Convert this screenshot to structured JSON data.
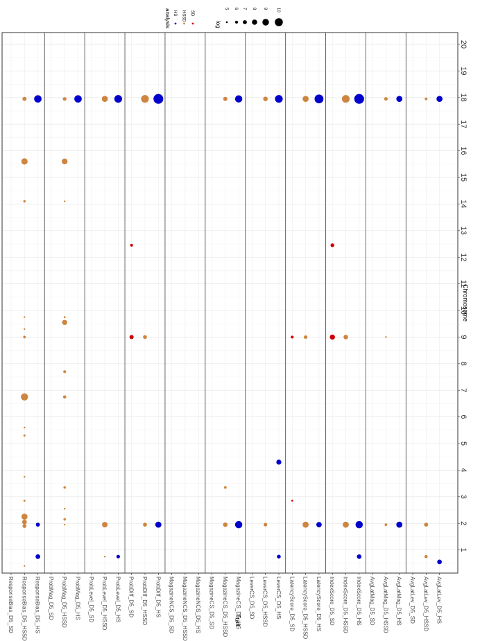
{
  "chart_data": {
    "type": "scatter",
    "orientation": "rotated-90",
    "xlabel": "Chromosome",
    "ylabel": "Trait",
    "chromosomes": [
      "1",
      "2",
      "3",
      "4",
      "5",
      "6",
      "7",
      "8",
      "9",
      "10",
      "11",
      "12",
      "13",
      "14",
      "15",
      "16",
      "17",
      "18",
      "19",
      "20"
    ],
    "chrom_range": [
      0.0,
      20.7
    ],
    "legend_position": "top",
    "analysis_legend": {
      "title": "analysis",
      "entries": [
        {
          "name": "HS",
          "color": "#0000CD"
        },
        {
          "name": "HSSD",
          "color": "#CD853F"
        },
        {
          "name": "SD",
          "color": "#CD0000"
        }
      ]
    },
    "size_legend": {
      "title": "log",
      "values": [
        5,
        6,
        7,
        8,
        9,
        10
      ]
    },
    "traits": [
      "ResponseBias_D5_SD",
      "ResponseBias_D5_HSSD",
      "ResponseBias_D5_HS",
      "ProbMag_D5_SD",
      "ProbMag_D5_HSSD",
      "ProbMag_D5_HS",
      "ProbLevel_D5_SD",
      "ProbLevel_D5_HSSD",
      "ProbLevel_D5_HS",
      "ProbDiff_D5_SD",
      "ProbDiff_D5_HSSD",
      "ProbDiff_D5_HS",
      "MagazineNCS_D5_SD",
      "MagazineNCS_D5_HSSD",
      "MagazineNCS_D5_HS",
      "MagazineCS_D5_SD",
      "MagazineCS_D5_HSSD",
      "MagazineCS_D5_HS",
      "LeverCS_D5_SD",
      "LeverCS_D5_HSSD",
      "LeverCS_D5_HS",
      "LatencyScore_D5_SD",
      "LatencyScore_D5_HSSD",
      "LatencyScore_D5_HS",
      "IndexScore_D5_SD",
      "IndexScore_D5_HSSD",
      "IndexScore_D5_HS",
      "AvgLatMag_D5_SD",
      "AvgLatMag_D5_HSSD",
      "AvgLatMag_D5_HS",
      "AvgLatLev_D5_SD",
      "AvgLatLev_D5_HSSD",
      "AvgLatLev_D5_HS"
    ],
    "points": [
      {
        "trait": "ResponseBias_D5_HSSD",
        "chrom": 0.4,
        "log": 4.6,
        "analysis": "HSSD"
      },
      {
        "trait": "ResponseBias_D5_HSSD",
        "chrom": 1.9,
        "log": 6.9,
        "analysis": "HSSD"
      },
      {
        "trait": "ResponseBias_D5_HSSD",
        "chrom": 2.05,
        "log": 7.5,
        "analysis": "HSSD"
      },
      {
        "trait": "ResponseBias_D5_HSSD",
        "chrom": 2.2,
        "log": 5.0,
        "analysis": "HSSD"
      },
      {
        "trait": "ResponseBias_D5_HSSD",
        "chrom": 2.25,
        "log": 8.6,
        "analysis": "HSSD"
      },
      {
        "trait": "ResponseBias_D5_HSSD",
        "chrom": 2.85,
        "log": 5.2,
        "analysis": "HSSD"
      },
      {
        "trait": "ResponseBias_D5_HSSD",
        "chrom": 3.75,
        "log": 4.9,
        "analysis": "HSSD"
      },
      {
        "trait": "ResponseBias_D5_HSSD",
        "chrom": 5.3,
        "log": 5.3,
        "analysis": "HSSD"
      },
      {
        "trait": "ResponseBias_D5_HSSD",
        "chrom": 5.6,
        "log": 4.9,
        "analysis": "HSSD"
      },
      {
        "trait": "ResponseBias_D5_HSSD",
        "chrom": 6.75,
        "log": 9.4,
        "analysis": "HSSD"
      },
      {
        "trait": "ResponseBias_D5_HSSD",
        "chrom": 9.0,
        "log": 5.8,
        "analysis": "HSSD"
      },
      {
        "trait": "ResponseBias_D5_HSSD",
        "chrom": 9.3,
        "log": 4.7,
        "analysis": "HSSD"
      },
      {
        "trait": "ResponseBias_D5_HSSD",
        "chrom": 9.75,
        "log": 4.3,
        "analysis": "HSSD"
      },
      {
        "trait": "ResponseBias_D5_HSSD",
        "chrom": 14.1,
        "log": 5.6,
        "analysis": "HSSD"
      },
      {
        "trait": "ResponseBias_D5_HSSD",
        "chrom": 15.6,
        "log": 8.8,
        "analysis": "HSSD"
      },
      {
        "trait": "ResponseBias_D5_HSSD",
        "chrom": 17.95,
        "log": 7.0,
        "analysis": "HSSD"
      },
      {
        "trait": "ResponseBias_D5_HS",
        "chrom": 0.75,
        "log": 7.5,
        "analysis": "HS"
      },
      {
        "trait": "ResponseBias_D5_HS",
        "chrom": 1.95,
        "log": 7.0,
        "analysis": "HS"
      },
      {
        "trait": "ResponseBias_D5_HS",
        "chrom": 17.95,
        "log": 9.6,
        "analysis": "HS"
      },
      {
        "trait": "ProbMag_D5_HSSD",
        "chrom": 1.95,
        "log": 4.8,
        "analysis": "HSSD"
      },
      {
        "trait": "ProbMag_D5_HSSD",
        "chrom": 2.15,
        "log": 5.6,
        "analysis": "HSSD"
      },
      {
        "trait": "ProbMag_D5_HSSD",
        "chrom": 2.55,
        "log": 4.9,
        "analysis": "HSSD"
      },
      {
        "trait": "ProbMag_D5_HSSD",
        "chrom": 3.35,
        "log": 5.6,
        "analysis": "HSSD"
      },
      {
        "trait": "ProbMag_D5_HSSD",
        "chrom": 6.75,
        "log": 6.3,
        "analysis": "HSSD"
      },
      {
        "trait": "ProbMag_D5_HSSD",
        "chrom": 7.7,
        "log": 6.0,
        "analysis": "HSSD"
      },
      {
        "trait": "ProbMag_D5_HSSD",
        "chrom": 9.55,
        "log": 7.9,
        "analysis": "HSSD"
      },
      {
        "trait": "ProbMag_D5_HSSD",
        "chrom": 9.75,
        "log": 5.1,
        "analysis": "HSSD"
      },
      {
        "trait": "ProbMag_D5_HSSD",
        "chrom": 14.1,
        "log": 4.9,
        "analysis": "HSSD"
      },
      {
        "trait": "ProbMag_D5_HSSD",
        "chrom": 15.6,
        "log": 8.4,
        "analysis": "HSSD"
      },
      {
        "trait": "ProbMag_D5_HSSD",
        "chrom": 17.95,
        "log": 6.7,
        "analysis": "HSSD"
      },
      {
        "trait": "ProbMag_D5_HS",
        "chrom": 17.95,
        "log": 9.6,
        "analysis": "HS"
      },
      {
        "trait": "ProbLevel_D5_HSSD",
        "chrom": 0.75,
        "log": 4.9,
        "analysis": "HSSD"
      },
      {
        "trait": "ProbLevel_D5_HSSD",
        "chrom": 1.95,
        "log": 8.2,
        "analysis": "HSSD"
      },
      {
        "trait": "ProbLevel_D5_HSSD",
        "chrom": 17.95,
        "log": 8.6,
        "analysis": "HSSD"
      },
      {
        "trait": "ProbLevel_D5_HS",
        "chrom": 0.75,
        "log": 6.6,
        "analysis": "HS"
      },
      {
        "trait": "ProbLevel_D5_HS",
        "chrom": 17.95,
        "log": 9.8,
        "analysis": "HS"
      },
      {
        "trait": "ProbDiff_D5_SD",
        "chrom": 9.0,
        "log": 7.1,
        "analysis": "SD"
      },
      {
        "trait": "ProbDiff_D5_SD",
        "chrom": 12.45,
        "log": 5.9,
        "analysis": "SD"
      },
      {
        "trait": "ProbDiff_D5_HSSD",
        "chrom": 1.95,
        "log": 6.9,
        "analysis": "HSSD"
      },
      {
        "trait": "ProbDiff_D5_HSSD",
        "chrom": 9.0,
        "log": 6.9,
        "analysis": "HSSD"
      },
      {
        "trait": "ProbDiff_D5_HSSD",
        "chrom": 17.95,
        "log": 9.8,
        "analysis": "HSSD"
      },
      {
        "trait": "ProbDiff_D5_HS",
        "chrom": 1.95,
        "log": 8.6,
        "analysis": "HS"
      },
      {
        "trait": "ProbDiff_D5_HS",
        "chrom": 17.95,
        "log": 11.2,
        "analysis": "HS"
      },
      {
        "trait": "MagazineCS_D5_HSSD",
        "chrom": 1.95,
        "log": 7.4,
        "analysis": "HSSD"
      },
      {
        "trait": "MagazineCS_D5_HSSD",
        "chrom": 3.35,
        "log": 5.8,
        "analysis": "HSSD"
      },
      {
        "trait": "MagazineCS_D5_HSSD",
        "chrom": 17.95,
        "log": 7.1,
        "analysis": "HSSD"
      },
      {
        "trait": "MagazineCS_D5_HS",
        "chrom": 1.95,
        "log": 9.5,
        "analysis": "HS"
      },
      {
        "trait": "MagazineCS_D5_HS",
        "chrom": 17.95,
        "log": 9.5,
        "analysis": "HS"
      },
      {
        "trait": "LeverCS_D5_HSSD",
        "chrom": 1.95,
        "log": 6.6,
        "analysis": "HSSD"
      },
      {
        "trait": "LeverCS_D5_HSSD",
        "chrom": 17.95,
        "log": 7.4,
        "analysis": "HSSD"
      },
      {
        "trait": "LeverCS_D5_HS",
        "chrom": 0.75,
        "log": 6.8,
        "analysis": "HS"
      },
      {
        "trait": "LeverCS_D5_HS",
        "chrom": 4.3,
        "log": 7.8,
        "analysis": "HS"
      },
      {
        "trait": "LeverCS_D5_HS",
        "chrom": 17.95,
        "log": 9.8,
        "analysis": "HS"
      },
      {
        "trait": "LatencyScore_D5_SD",
        "chrom": 2.85,
        "log": 5.0,
        "analysis": "SD"
      },
      {
        "trait": "LatencyScore_D5_SD",
        "chrom": 9.0,
        "log": 6.0,
        "analysis": "SD"
      },
      {
        "trait": "LatencyScore_D5_HSSD",
        "chrom": 1.95,
        "log": 8.6,
        "analysis": "HSSD"
      },
      {
        "trait": "LatencyScore_D5_HSSD",
        "chrom": 9.0,
        "log": 6.6,
        "analysis": "HSSD"
      },
      {
        "trait": "LatencyScore_D5_HSSD",
        "chrom": 17.95,
        "log": 8.6,
        "analysis": "HSSD"
      },
      {
        "trait": "LatencyScore_D5_HS",
        "chrom": 1.95,
        "log": 8.1,
        "analysis": "HS"
      },
      {
        "trait": "LatencyScore_D5_HS",
        "chrom": 17.95,
        "log": 10.6,
        "analysis": "HS"
      },
      {
        "trait": "IndexScore_D5_SD",
        "chrom": 9.0,
        "log": 7.9,
        "analysis": "SD"
      },
      {
        "trait": "IndexScore_D5_SD",
        "chrom": 12.45,
        "log": 6.8,
        "analysis": "SD"
      },
      {
        "trait": "IndexScore_D5_HSSD",
        "chrom": 1.95,
        "log": 8.6,
        "analysis": "HSSD"
      },
      {
        "trait": "IndexScore_D5_HSSD",
        "chrom": 9.0,
        "log": 7.4,
        "analysis": "HSSD"
      },
      {
        "trait": "IndexScore_D5_HSSD",
        "chrom": 17.95,
        "log": 9.8,
        "analysis": "HSSD"
      },
      {
        "trait": "IndexScore_D5_HS",
        "chrom": 0.75,
        "log": 7.4,
        "analysis": "HS"
      },
      {
        "trait": "IndexScore_D5_HS",
        "chrom": 1.95,
        "log": 9.5,
        "analysis": "HS"
      },
      {
        "trait": "IndexScore_D5_HS",
        "chrom": 17.95,
        "log": 11.2,
        "analysis": "HS"
      },
      {
        "trait": "AvgLatMag_D5_HSSD",
        "chrom": 1.95,
        "log": 5.8,
        "analysis": "HSSD"
      },
      {
        "trait": "AvgLatMag_D5_HSSD",
        "chrom": 9.0,
        "log": 4.9,
        "analysis": "HSSD"
      },
      {
        "trait": "AvgLatMag_D5_HSSD",
        "chrom": 17.95,
        "log": 6.6,
        "analysis": "HSSD"
      },
      {
        "trait": "AvgLatMag_D5_HS",
        "chrom": 1.95,
        "log": 8.6,
        "analysis": "HS"
      },
      {
        "trait": "AvgLatMag_D5_HS",
        "chrom": 17.95,
        "log": 8.6,
        "analysis": "HS"
      },
      {
        "trait": "AvgLatLev_D5_HSSD",
        "chrom": 0.75,
        "log": 6.3,
        "analysis": "HSSD"
      },
      {
        "trait": "AvgLatLev_D5_HSSD",
        "chrom": 1.95,
        "log": 7.0,
        "analysis": "HSSD"
      },
      {
        "trait": "AvgLatLev_D5_HSSD",
        "chrom": 17.95,
        "log": 5.8,
        "analysis": "HSSD"
      },
      {
        "trait": "AvgLatLev_D5_HS",
        "chrom": 0.55,
        "log": 7.5,
        "analysis": "HS"
      },
      {
        "trait": "AvgLatLev_D5_HS",
        "chrom": 17.95,
        "log": 8.6,
        "analysis": "HS"
      }
    ]
  }
}
